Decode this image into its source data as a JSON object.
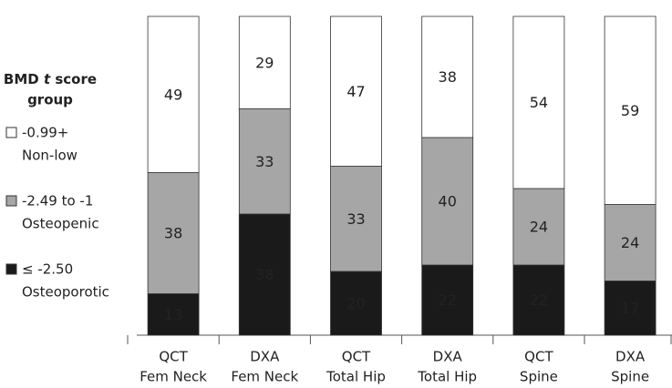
{
  "chart_data": {
    "type": "stacked_bar",
    "legend_title": [
      "BMD t score",
      "group"
    ],
    "categories": [
      [
        "QCT",
        "Fem Neck"
      ],
      [
        "DXA",
        "Fem Neck"
      ],
      [
        "QCT",
        "Total Hip"
      ],
      [
        "DXA",
        "Total Hip"
      ],
      [
        "QCT",
        "Spine"
      ],
      [
        "DXA",
        "Spine"
      ]
    ],
    "series": [
      {
        "name": [
          "≤ -2.50",
          "Osteoporotic"
        ],
        "color": "#1a1a1a",
        "text_color": "#ffffff",
        "values": [
          13,
          38,
          20,
          22,
          22,
          17
        ]
      },
      {
        "name": [
          "-2.49 to -1",
          "Osteopenic"
        ],
        "color": "#a6a6a6",
        "text_color": "#222222",
        "values": [
          38,
          33,
          33,
          40,
          24,
          24
        ]
      },
      {
        "name": [
          "-0.99+",
          "Non-low"
        ],
        "color": "#ffffff",
        "text_color": "#222222",
        "values": [
          49,
          29,
          47,
          38,
          54,
          59
        ]
      }
    ],
    "legend": "left"
  }
}
